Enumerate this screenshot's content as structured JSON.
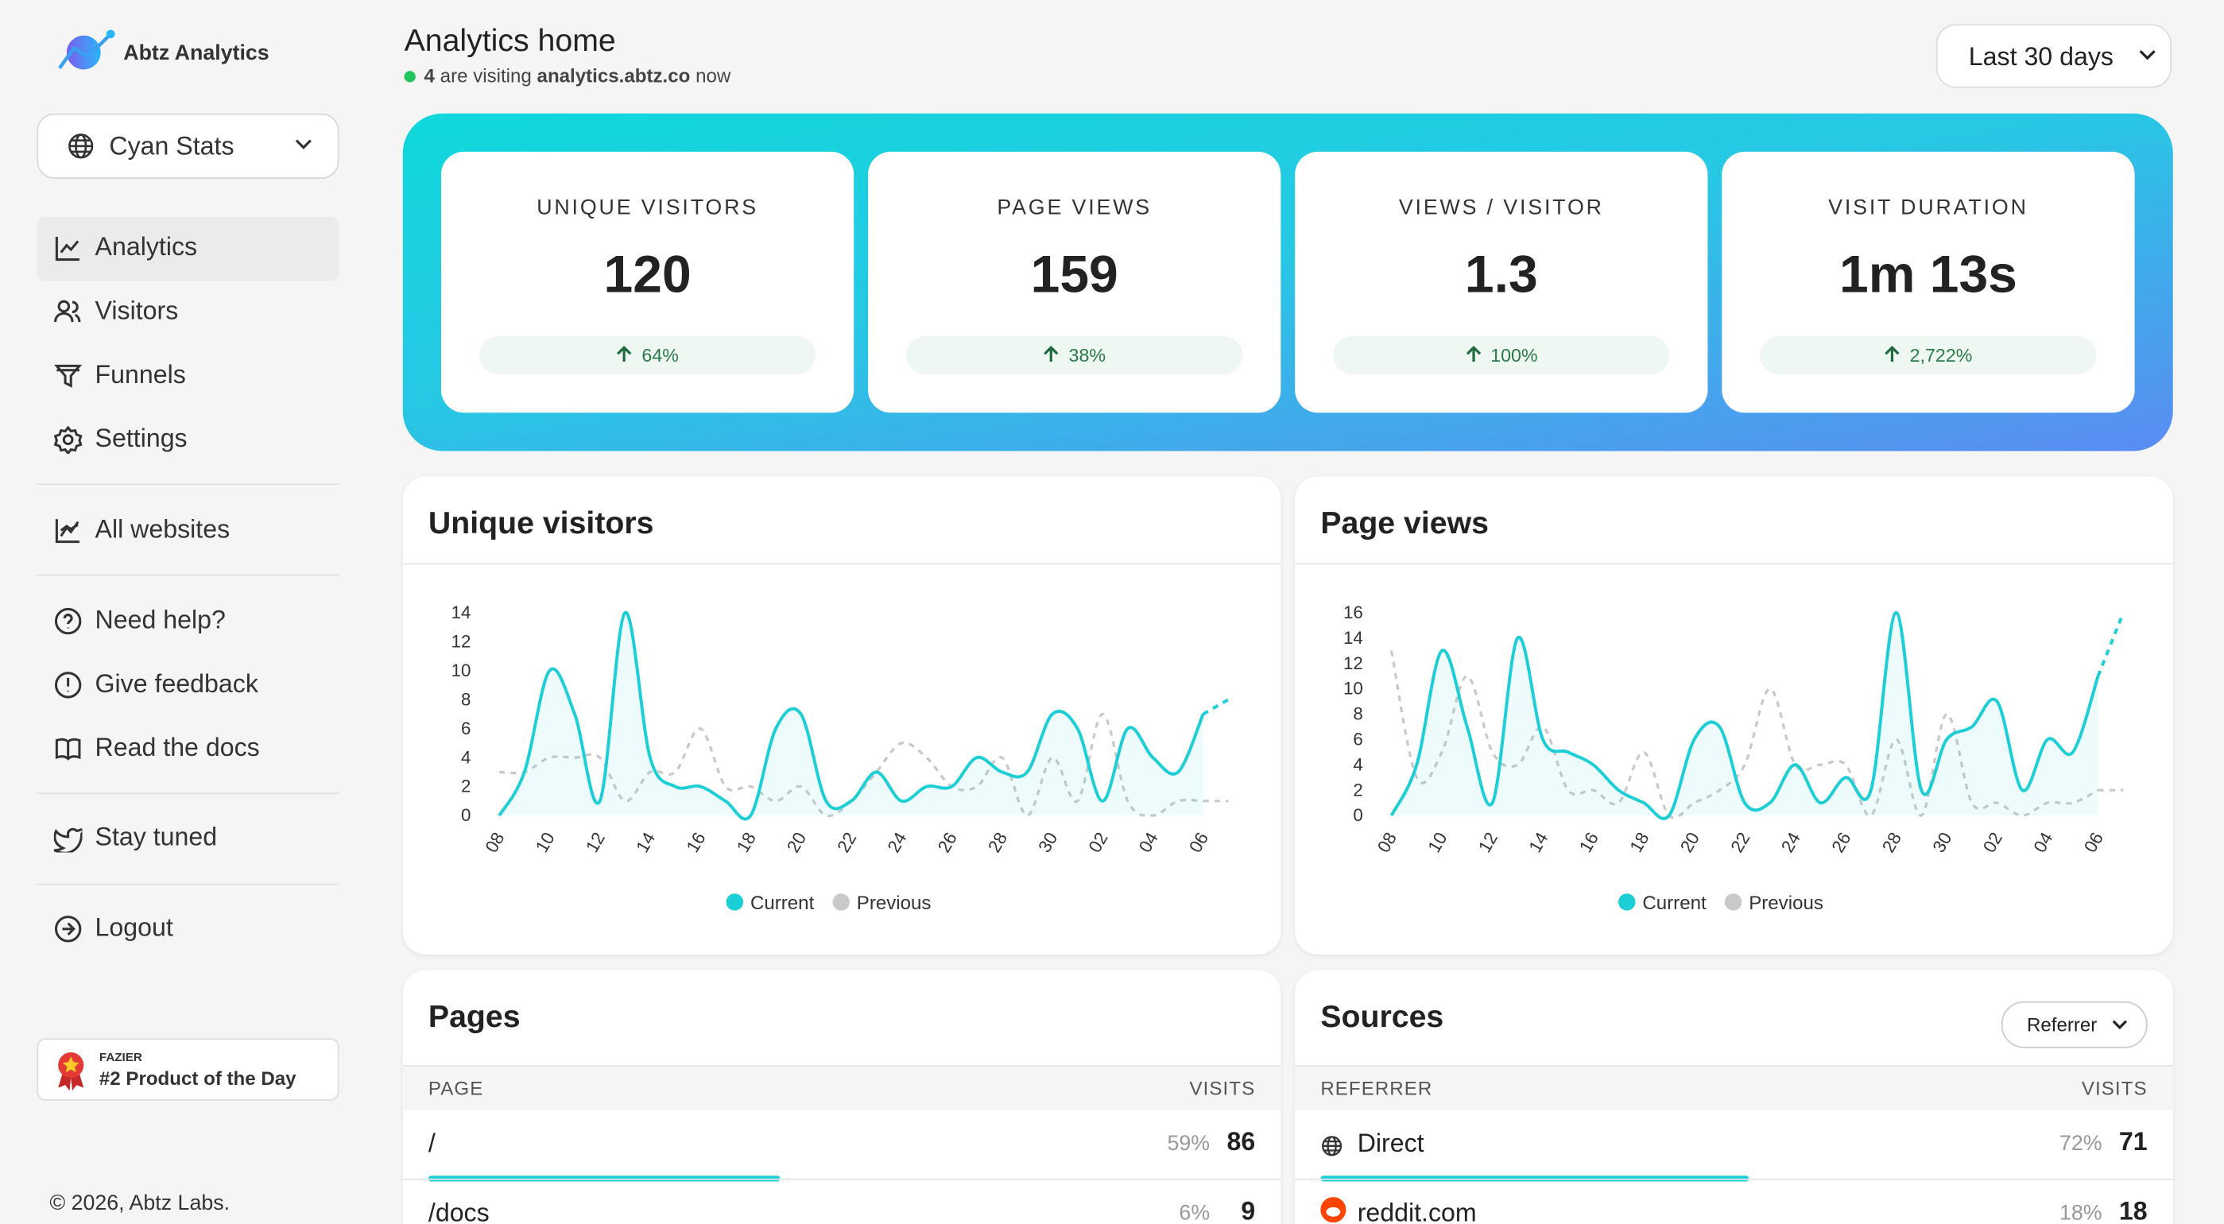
{
  "sidebar": {
    "brand": "Abtz Analytics",
    "site": "Cyan Stats",
    "nav": [
      "Analytics",
      "Visitors",
      "Funnels",
      "Settings"
    ],
    "all_websites": "All websites",
    "help": [
      "Need help?",
      "Give feedback",
      "Read the docs"
    ],
    "stay_tuned": "Stay tuned",
    "logout": "Logout",
    "badge": {
      "label": "FAZIER",
      "title": "#2 Product of the Day"
    },
    "footer": "© 2026, Abtz Labs."
  },
  "header": {
    "title": "Analytics home",
    "live": {
      "count": 4,
      "text": "are visiting",
      "domain": "analytics.abtz.co",
      "suffix": "now"
    },
    "range": "Last 30 days"
  },
  "kpis": [
    {
      "label": "UNIQUE VISITORS",
      "value": 120,
      "change": "64%"
    },
    {
      "label": "PAGE VIEWS",
      "value": 159,
      "change": "38%"
    },
    {
      "label": "VIEWS / VISITOR",
      "value": 1.3,
      "change": "100%"
    },
    {
      "label": "VISIT DURATION",
      "value": "1m 13s",
      "change": "2,722%"
    }
  ],
  "chart_data": [
    {
      "type": "line",
      "title": "Unique visitors",
      "categories": [
        "08",
        null,
        "10",
        null,
        "12",
        null,
        "14",
        null,
        "16",
        null,
        "18",
        null,
        "20",
        null,
        "22",
        null,
        "24",
        null,
        "26",
        null,
        "28",
        null,
        "30",
        null,
        "02",
        null,
        "04",
        null,
        "06",
        null
      ],
      "series": [
        {
          "name": "Current",
          "color": "#1ccfd6",
          "values": [
            0,
            3,
            10,
            7,
            1,
            14,
            4,
            2,
            2,
            1,
            0,
            6,
            7,
            1,
            1,
            3,
            1,
            2,
            2,
            4,
            3,
            3,
            7,
            6,
            1,
            6,
            4,
            3,
            7,
            8
          ]
        },
        {
          "name": "Previous",
          "color": "#c9c9c9",
          "values": [
            3,
            3,
            4,
            4,
            4,
            1,
            3,
            3,
            6,
            2,
            2,
            1,
            2,
            0,
            1,
            3,
            5,
            4,
            2,
            2,
            4,
            0,
            4,
            1,
            7,
            1,
            0,
            1,
            1,
            1
          ]
        }
      ],
      "ylim": [
        0,
        14
      ],
      "yticks": [
        0,
        2,
        4,
        6,
        8,
        10,
        12,
        14
      ]
    },
    {
      "type": "line",
      "title": "Page views",
      "categories": [
        "08",
        null,
        "10",
        null,
        "12",
        null,
        "14",
        null,
        "16",
        null,
        "18",
        null,
        "20",
        null,
        "22",
        null,
        "24",
        null,
        "26",
        null,
        "28",
        null,
        "30",
        null,
        "02",
        null,
        "04",
        null,
        "06",
        null
      ],
      "series": [
        {
          "name": "Current",
          "color": "#1ccfd6",
          "values": [
            0,
            4,
            13,
            7,
            1,
            14,
            6,
            5,
            4,
            2,
            1,
            0,
            6,
            7,
            1,
            1,
            4,
            1,
            3,
            2,
            16,
            2,
            6,
            7,
            9,
            2,
            6,
            5,
            11,
            16
          ]
        },
        {
          "name": "Previous",
          "color": "#c9c9c9",
          "values": [
            13,
            3,
            5,
            11,
            5,
            4,
            7,
            2,
            2,
            1,
            5,
            0,
            1,
            2,
            4,
            10,
            4,
            4,
            4,
            0,
            6,
            0,
            8,
            1,
            1,
            0,
            1,
            1,
            2,
            2
          ]
        }
      ],
      "ylim": [
        0,
        16
      ],
      "yticks": [
        0,
        2,
        4,
        6,
        8,
        10,
        12,
        14,
        16
      ]
    }
  ],
  "pages": {
    "title": "Pages",
    "columns": [
      "PAGE",
      "VISITS"
    ],
    "rows": [
      {
        "label": "/",
        "share": {
          "value": 59,
          "label": "59%"
        },
        "visits": 86
      },
      {
        "label": "/docs",
        "share": {
          "value": 6,
          "label": "6%"
        },
        "visits": 9
      }
    ]
  },
  "sources": {
    "title": "Sources",
    "dropdown": "Referrer",
    "columns": [
      "REFERRER",
      "VISITS"
    ],
    "rows": [
      {
        "label": "Direct",
        "share": {
          "value": 72,
          "label": "72%"
        },
        "visits": 71
      },
      {
        "label": "reddit.com",
        "share": {
          "value": 18,
          "label": "18%"
        },
        "visits": 18
      }
    ]
  }
}
